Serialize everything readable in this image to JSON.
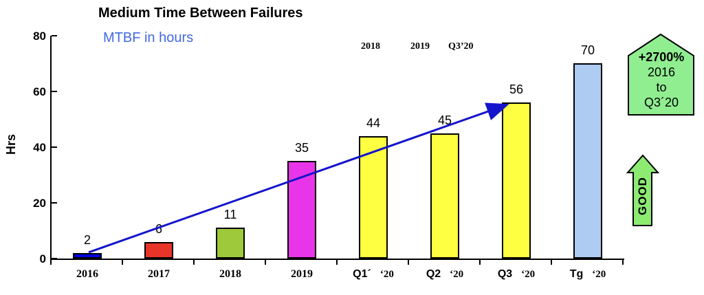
{
  "header": {
    "title": "Medium Time Between Failures",
    "subtitle": "MTBF in hours"
  },
  "top_annotations": [
    "2018",
    "2019",
    "Q3’20"
  ],
  "pct_callout": {
    "lines": [
      "+2700%",
      "2016",
      "to",
      "Q3´20"
    ]
  },
  "good_arrow": {
    "label": "GOOD"
  },
  "colors": {
    "subtitle_blue": "#4169E1",
    "trend_blue": "#1414CC",
    "callout_green": "#90EE90",
    "good_green": "#8DEB72",
    "bar_border": "#000000"
  },
  "chart_data": {
    "type": "bar",
    "title": "Medium Time Between Failures",
    "subtitle": "MTBF in hours",
    "ylabel": "Hrs",
    "xlabel": "",
    "ylim": [
      0,
      80
    ],
    "yticks": [
      0,
      20,
      40,
      60,
      80
    ],
    "grid": false,
    "legend": null,
    "categories": [
      "2016",
      "2017",
      "2018",
      "2019",
      "Q1´ ‘20",
      "Q2 ‘20",
      "Q3 ‘20",
      "Tg ‘20"
    ],
    "values": [
      2,
      6,
      11,
      35,
      44,
      45,
      56,
      70
    ],
    "bar_colors": [
      "#0000E0",
      "#E8352A",
      "#9DC93A",
      "#E935E9",
      "#FFFF42",
      "#FFFF42",
      "#FFFF42",
      "#AECBF2"
    ],
    "xlabel_parts": [
      {
        "main": "2016",
        "suffix": "",
        "serif_main": true
      },
      {
        "main": "2017",
        "suffix": "",
        "serif_main": true
      },
      {
        "main": "2018",
        "suffix": "",
        "serif_main": true
      },
      {
        "main": "2019",
        "suffix": "",
        "serif_main": true
      },
      {
        "main": "Q1´",
        "suffix": "‘20",
        "serif_main": false
      },
      {
        "main": "Q2",
        "suffix": "‘20",
        "serif_main": false
      },
      {
        "main": "Q3",
        "suffix": "‘20",
        "serif_main": false
      },
      {
        "main": "Tg",
        "suffix": "‘20",
        "serif_main": false
      }
    ],
    "trend_arrow": {
      "from": "2016",
      "to": "Q3 ‘20",
      "color": "#1414CC"
    }
  }
}
